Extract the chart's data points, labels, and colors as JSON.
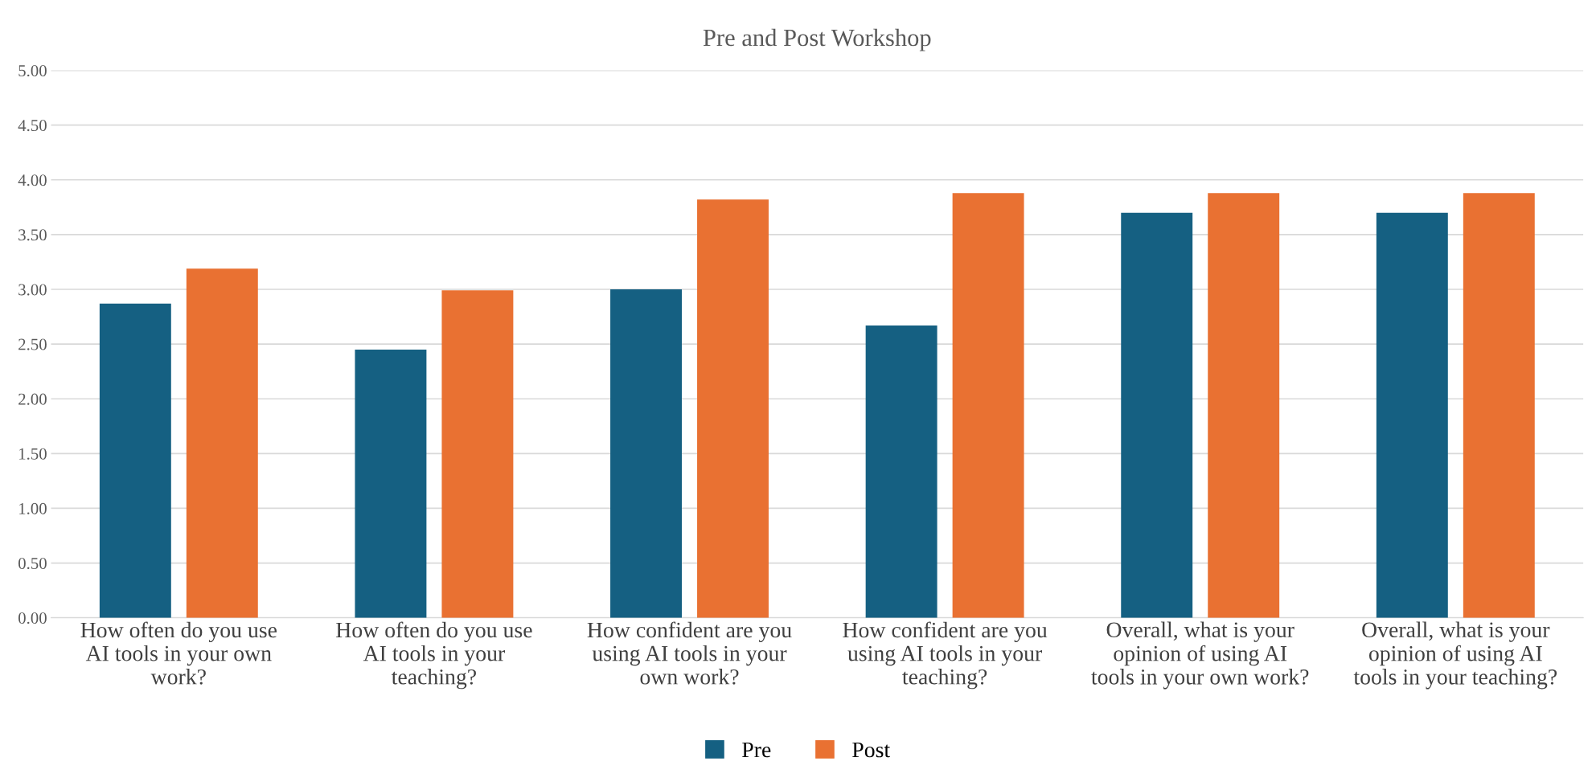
{
  "chart_data": {
    "type": "bar",
    "title": "Pre and Post Workshop",
    "categories": [
      "How often do you use\nAI tools in your own\nwork?",
      "How often do you use\nAI tools in your\nteaching?",
      "How confident are you\nusing AI tools in your\nown work?",
      "How confident are you\nusing AI tools in your\nteaching?",
      "Overall, what is your\nopinion of using AI\ntools in your own work?",
      "Overall, what is your\nopinion of using AI\ntools in your teaching?"
    ],
    "series": [
      {
        "name": "Pre",
        "color": "#156082",
        "values": [
          2.87,
          2.45,
          3.0,
          2.67,
          3.7,
          3.7
        ]
      },
      {
        "name": "Post",
        "color": "#e97132",
        "values": [
          3.19,
          2.99,
          3.82,
          3.88,
          3.88,
          3.88
        ]
      }
    ],
    "ylim": [
      0,
      5
    ],
    "yticks": [
      {
        "value": 0,
        "label": "0.00"
      },
      {
        "value": 0.5,
        "label": "0.50"
      },
      {
        "value": 1,
        "label": "1.00"
      },
      {
        "value": 1.5,
        "label": "1.50"
      },
      {
        "value": 2,
        "label": "2.00"
      },
      {
        "value": 2.5,
        "label": "2.50"
      },
      {
        "value": 3,
        "label": "3.00"
      },
      {
        "value": 3.5,
        "label": "3.50"
      },
      {
        "value": 4,
        "label": "4.00"
      },
      {
        "value": 4.5,
        "label": "4.50"
      },
      {
        "value": 5,
        "label": "5.00"
      }
    ],
    "grid": "y",
    "legend": "bottom"
  }
}
